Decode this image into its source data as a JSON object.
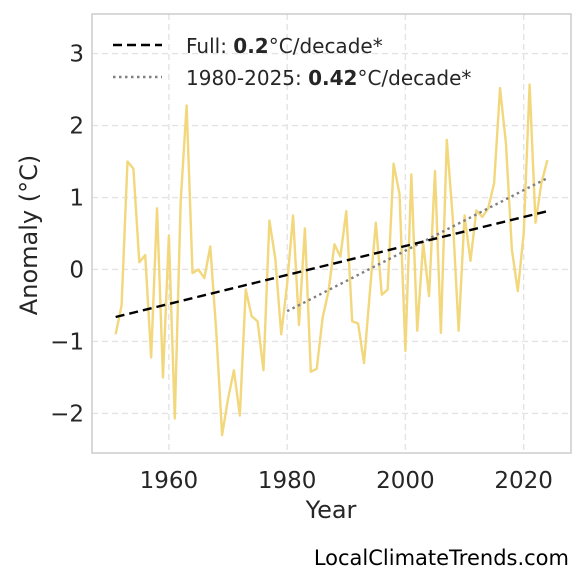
{
  "chart_data": {
    "type": "line",
    "xlabel": "Year",
    "ylabel": "Anomaly (°C)",
    "xlim": [
      1947,
      2028
    ],
    "ylim": [
      -2.55,
      3.55
    ],
    "xticks": [
      1960,
      1980,
      2000,
      2020
    ],
    "yticks": [
      -2,
      -1,
      0,
      1,
      2,
      3
    ],
    "ytick_labels": [
      "−2",
      "−1",
      "0",
      "1",
      "2",
      "3"
    ],
    "grid": true,
    "legend_position": "top-left",
    "series": [
      {
        "color": "#f2d77c",
        "style": "solid",
        "x": [
          1951,
          1952,
          1953,
          1954,
          1955,
          1956,
          1957,
          1958,
          1959,
          1960,
          1961,
          1962,
          1963,
          1964,
          1965,
          1966,
          1967,
          1968,
          1969,
          1970,
          1971,
          1972,
          1973,
          1974,
          1975,
          1976,
          1977,
          1978,
          1979,
          1980,
          1981,
          1982,
          1983,
          1984,
          1985,
          1986,
          1987,
          1988,
          1989,
          1990,
          1991,
          1992,
          1993,
          1994,
          1995,
          1996,
          1997,
          1998,
          1999,
          2000,
          2001,
          2002,
          2003,
          2004,
          2005,
          2006,
          2007,
          2008,
          2009,
          2010,
          2011,
          2012,
          2013,
          2014,
          2015,
          2016,
          2017,
          2018,
          2019,
          2020,
          2021,
          2022,
          2023,
          2024
        ],
        "y": [
          -0.9,
          -0.5,
          1.5,
          1.4,
          0.1,
          0.2,
          -1.22,
          0.85,
          -1.5,
          0.47,
          -2.07,
          0.95,
          2.28,
          -0.05,
          0.0,
          -0.12,
          0.32,
          -0.85,
          -2.3,
          -1.8,
          -1.4,
          -2.03,
          -0.28,
          -0.65,
          -0.72,
          -1.4,
          0.68,
          0.15,
          -0.9,
          -0.2,
          0.75,
          -0.77,
          0.57,
          -1.42,
          -1.38,
          -0.67,
          -0.3,
          0.35,
          0.18,
          0.81,
          -0.72,
          -0.75,
          -1.3,
          -0.3,
          0.65,
          -0.35,
          -0.28,
          1.47,
          1.05,
          -1.13,
          1.32,
          -0.85,
          0.37,
          -0.37,
          1.37,
          -0.88,
          1.8,
          0.72,
          -0.85,
          0.75,
          0.12,
          0.82,
          0.73,
          0.85,
          1.2,
          2.52,
          1.75,
          0.28,
          -0.3,
          0.5,
          2.57,
          0.65,
          1.2,
          1.52
        ]
      },
      {
        "name": "Full: 0.2°C/decade*",
        "color": "#000000",
        "style": "dashed",
        "x": [
          1951,
          2024
        ],
        "y": [
          -0.66,
          0.81
        ]
      },
      {
        "name": "1980-2025: 0.42°C/decade*",
        "color": "#808080",
        "style": "dotted",
        "x": [
          1980,
          2024
        ],
        "y": [
          -0.58,
          1.27
        ]
      }
    ],
    "legend": [
      {
        "prefix": "Full: ",
        "value": "0.2",
        "suffix": "°C/decade*",
        "color": "#000000",
        "style": "dashed"
      },
      {
        "prefix": "1980-2025: ",
        "value": "0.42",
        "suffix": "°C/decade*",
        "color": "#808080",
        "style": "dotted"
      }
    ]
  },
  "source": "LocalClimateTrends.com"
}
